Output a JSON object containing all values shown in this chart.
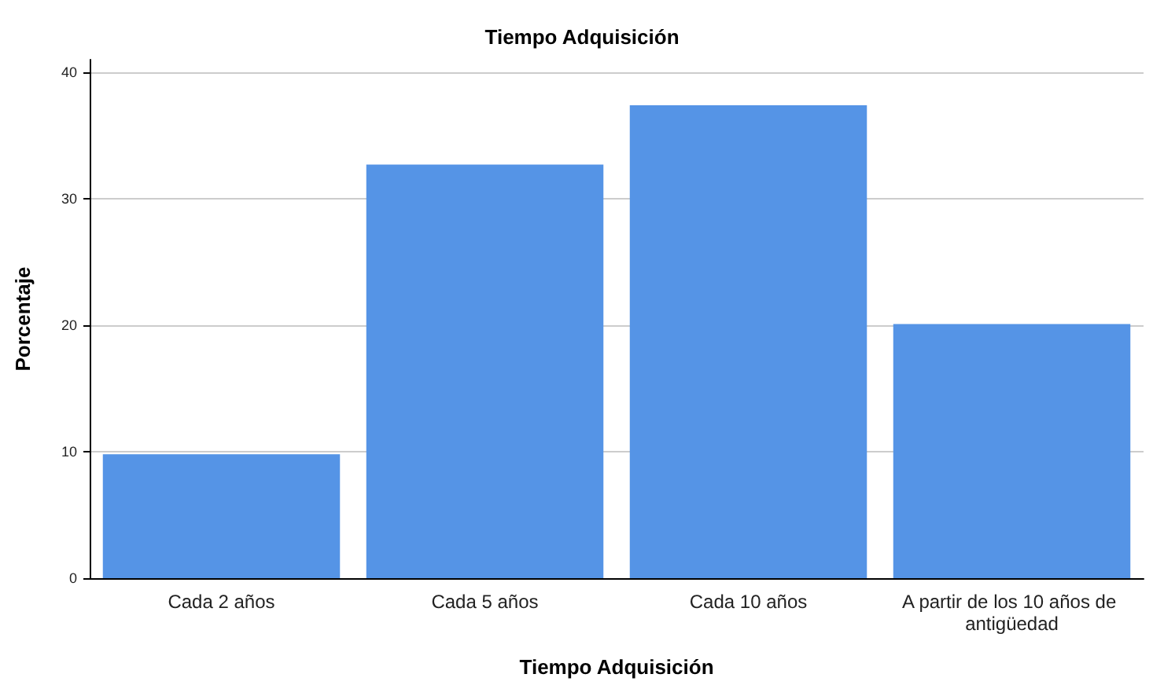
{
  "chart_data": {
    "type": "bar",
    "title": "Tiempo Adquisición",
    "xlabel": "Tiempo Adquisición",
    "ylabel": "Porcentaje",
    "categories": [
      "Cada 2 años",
      "Cada 5 años",
      "Cada 10 años",
      "A partir de los 10 años de antigüedad"
    ],
    "values": [
      9.8,
      32.7,
      37.4,
      20.1
    ],
    "color": "#5594e6",
    "ylim": [
      0,
      41
    ],
    "yticks": [
      0,
      10,
      20,
      30,
      40
    ],
    "grid": "y"
  }
}
